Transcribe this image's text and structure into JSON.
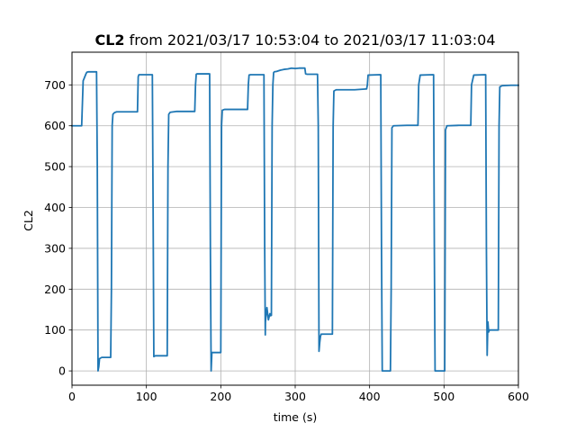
{
  "chart_data": {
    "type": "line",
    "title": {
      "bold": "CL2",
      "rest": " from 2021/03/17 10:53:04 to 2021/03/17 11:03:04"
    },
    "xlabel": "time (s)",
    "ylabel": "CL2",
    "xlim": [
      0,
      600
    ],
    "ylim": [
      -35,
      780
    ],
    "xticks": [
      0,
      100,
      200,
      300,
      400,
      500,
      600
    ],
    "yticks": [
      0,
      100,
      200,
      300,
      400,
      500,
      600,
      700
    ],
    "grid": true,
    "series": [
      {
        "color": "#1f77b4",
        "x": [
          0,
          13,
          15,
          19,
          20,
          22,
          33,
          34,
          35,
          36,
          37,
          40,
          52,
          53,
          54,
          55,
          57,
          60,
          70,
          80,
          88,
          89,
          90,
          108,
          109,
          110,
          112,
          128,
          129,
          130,
          132,
          140,
          148,
          165,
          166,
          167,
          168,
          185,
          186,
          187,
          188,
          189,
          192,
          200,
          201,
          202,
          205,
          215,
          225,
          236,
          237,
          238,
          240,
          258,
          259,
          259.8,
          260,
          262,
          264,
          266,
          267,
          268,
          269,
          270,
          271,
          272,
          275,
          280,
          285,
          290,
          295,
          300,
          305,
          310,
          313,
          314,
          316,
          330,
          331,
          332,
          333,
          334,
          335,
          338,
          350,
          351,
          352,
          355,
          380,
          395,
          396,
          397,
          398,
          414,
          415,
          416,
          417,
          425,
          428,
          429,
          430,
          432,
          450,
          464,
          465,
          466,
          468,
          485,
          486,
          487,
          488,
          490,
          500,
          501,
          502,
          504,
          520,
          535,
          536,
          537,
          540,
          555,
          556,
          557,
          558,
          559,
          560,
          561,
          562,
          573,
          574,
          575,
          578,
          590,
          600
        ],
        "y": [
          600,
          600,
          710,
          728,
          731,
          732,
          732,
          500,
          0,
          10,
          30,
          33,
          33,
          200,
          600,
          628,
          632,
          634,
          634,
          634,
          634,
          720,
          725,
          725,
          400,
          35,
          37,
          37,
          500,
          628,
          633,
          635,
          635,
          635,
          700,
          726,
          727,
          727,
          300,
          0,
          45,
          45,
          45,
          45,
          600,
          638,
          640,
          640,
          640,
          640,
          700,
          724,
          725,
          725,
          300,
          88,
          120,
          155,
          125,
          140,
          135,
          136,
          600,
          700,
          730,
          732,
          733,
          736,
          738,
          739,
          741,
          740,
          741,
          741,
          741,
          727,
          726,
          726,
          600,
          48,
          70,
          85,
          90,
          90,
          90,
          600,
          685,
          688,
          688,
          690,
          690,
          700,
          724,
          725,
          725,
          300,
          0,
          0,
          0,
          200,
          595,
          600,
          601,
          601,
          601,
          700,
          724,
          725,
          725,
          300,
          0,
          0,
          0,
          0,
          590,
          600,
          601,
          601,
          601,
          700,
          724,
          725,
          725,
          300,
          38,
          120,
          95,
          100,
          100,
          100,
          600,
          695,
          698,
          699,
          699
        ]
      }
    ]
  }
}
